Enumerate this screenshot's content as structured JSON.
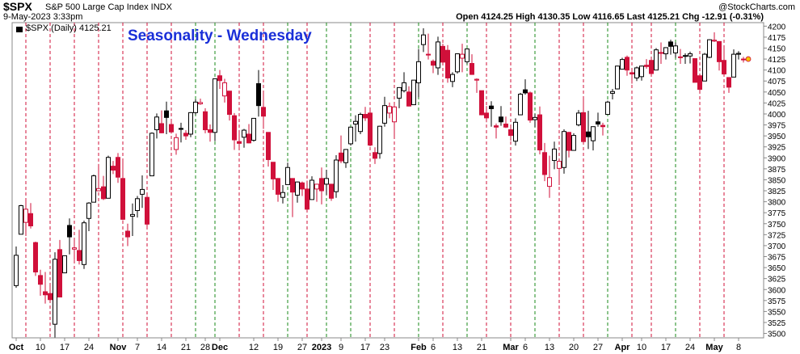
{
  "chart_data": {
    "type": "candlestick",
    "symbol": "$SPX",
    "name": "S&P 500 Large Cap Index INDX",
    "date": "9-May-2023 3:33pm",
    "quote": "Open 4124.25 High 4130.35 Low 4116.65 Last 4125.21 Chg -12.91 (-0.31%)",
    "source": "@StockCharts.com",
    "legend": "$SPX (Daily) 4125.21",
    "title": "Seasonality - Wednesday",
    "up_color": "#000000",
    "down_color": "#d0103a",
    "wed_up_color": "#1a8a1a",
    "wed_down_color": "#d0103a",
    "ylim": [
      3490,
      4208
    ],
    "yticks": [
      3500,
      3525,
      3550,
      3575,
      3600,
      3625,
      3650,
      3675,
      3700,
      3725,
      3750,
      3775,
      3800,
      3825,
      3850,
      3875,
      3900,
      3925,
      3950,
      3975,
      4000,
      4025,
      4050,
      4075,
      4100,
      4125,
      4150,
      4175,
      4200
    ],
    "categories": [
      "Oct",
      null,
      null,
      null,
      null,
      "10",
      null,
      null,
      null,
      null,
      "17",
      null,
      null,
      null,
      null,
      "24",
      null,
      null,
      null,
      null,
      null,
      "Nov",
      null,
      null,
      null,
      "7",
      null,
      null,
      null,
      null,
      "14",
      null,
      null,
      null,
      null,
      "21",
      null,
      null,
      null,
      "28",
      null,
      null,
      "Dec",
      null,
      null,
      null,
      null,
      null,
      null,
      "12",
      null,
      null,
      null,
      null,
      "19",
      null,
      null,
      null,
      null,
      "27",
      null,
      null,
      null,
      "2023",
      null,
      null,
      null,
      "9",
      null,
      null,
      null,
      null,
      "17",
      null,
      null,
      null,
      "23",
      null,
      null,
      null,
      null,
      null,
      null,
      "Feb",
      null,
      null,
      "6",
      null,
      null,
      null,
      null,
      "13",
      null,
      null,
      null,
      null,
      "21",
      null,
      null,
      null,
      null,
      null,
      "Mar",
      null,
      null,
      "6",
      null,
      null,
      null,
      null,
      "13",
      null,
      null,
      null,
      null,
      "20",
      null,
      null,
      null,
      null,
      "27",
      null,
      null,
      null,
      null,
      "Apr",
      null,
      null,
      null,
      "10",
      null,
      null,
      null,
      null,
      "17",
      null,
      null,
      null,
      null,
      "24",
      null,
      null,
      null,
      null,
      "May",
      null,
      null,
      null,
      null,
      "8",
      null
    ],
    "wednesdays": [
      2,
      7,
      12,
      17,
      22,
      27,
      32,
      37,
      41,
      46,
      51,
      56,
      60,
      64,
      69,
      73,
      78,
      83,
      88,
      93,
      97,
      102,
      107,
      112,
      117,
      122,
      127,
      131,
      136,
      141,
      146
    ],
    "open": [
      3609,
      3726,
      3753,
      3773,
      3707,
      3632,
      3595,
      3591,
      3521,
      3691,
      3638,
      3746,
      3692,
      3689,
      3657,
      3762,
      3799,
      3825,
      3834,
      3808,
      3881,
      3901,
      3853,
      3733,
      3767,
      3780,
      3817,
      3810,
      3859,
      3964,
      3978,
      4007,
      3976,
      3919,
      3967,
      3956,
      3954,
      4003,
      4023,
      4005,
      3964,
      3958,
      4087,
      4041,
      4052,
      3996,
      3937,
      3947,
      3954,
      3940,
      4069,
      4015,
      3958,
      3890,
      3853,
      3810,
      3839,
      3853,
      3815,
      3843,
      3829,
      3805,
      3829,
      3853,
      3840,
      3840,
      3823,
      3911,
      3889,
      3932,
      3977,
      3960,
      3999,
      4002,
      3912,
      3910,
      3979,
      4002,
      3982,
      4036,
      4053,
      4050,
      4021,
      4071,
      4158,
      4136,
      4120,
      4105,
      4154,
      4145,
      4074,
      4096,
      4127,
      4119,
      4115,
      4077,
      4053,
      4002,
      4018,
      3973,
      3993,
      3977,
      3964,
      3938,
      3998,
      4055,
      4048,
      3987,
      3998,
      3912,
      3835,
      3894,
      3876,
      3878,
      3958,
      3917,
      3975,
      4003,
      3959,
      3939,
      3982,
      3974,
      3999,
      4047,
      4057,
      4102,
      4129,
      4094,
      4082,
      4085,
      4111,
      4122,
      4100,
      4140,
      4137,
      4164,
      4139,
      4130,
      4132,
      4132,
      4126,
      4087,
      4075,
      4129,
      4166,
      4165,
      4122,
      4083,
      4084,
      4136,
      4124
    ],
    "high": [
      3698,
      3793,
      3807,
      3797,
      3709,
      3645,
      3640,
      3608,
      3685,
      3713,
      3677,
      3762,
      3714,
      3736,
      3757,
      3799,
      3862,
      3886,
      3859,
      3905,
      3893,
      3911,
      3895,
      3750,
      3796,
      3813,
      3860,
      3818,
      3958,
      4001,
      4008,
      4028,
      3984,
      3955,
      3980,
      3963,
      4004,
      4033,
      4035,
      4013,
      3976,
      4080,
      4100,
      4080,
      4052,
      4002,
      3956,
      3966,
      3977,
      3990,
      4100,
      4053,
      3958,
      3890,
      3854,
      3838,
      3889,
      3853,
      3846,
      3846,
      3848,
      3858,
      3840,
      3878,
      3873,
      3840,
      3906,
      3951,
      3920,
      3970,
      3997,
      4003,
      4016,
      4015,
      3924,
      3973,
      4039,
      4026,
      4020,
      4061,
      4095,
      4063,
      4077,
      4148,
      4195,
      4183,
      4124,
      4176,
      4160,
      4157,
      4095,
      4138,
      4160,
      4148,
      4136,
      4081,
      4053,
      4018,
      4029,
      3978,
      4018,
      3994,
      3971,
      3990,
      4048,
      4079,
      4051,
      4000,
      4017,
      3934,
      3905,
      3937,
      3894,
      3965,
      3959,
      3956,
      4009,
      4039,
      4007,
      3972,
      4003,
      3980,
      4030,
      4057,
      4110,
      4128,
      4133,
      4099,
      4108,
      4110,
      4125,
      4125,
      4150,
      4163,
      4152,
      4169,
      4163,
      4148,
      4138,
      4142,
      4127,
      4089,
      4139,
      4170,
      4186,
      4165,
      4149,
      4083,
      4147,
      4143,
      4130
    ],
    "low": [
      3604,
      3726,
      3722,
      3739,
      3631,
      3586,
      3568,
      3574,
      3491,
      3583,
      3638,
      3680,
      3667,
      3657,
      3647,
      3733,
      3799,
      3824,
      3804,
      3808,
      3863,
      3843,
      3758,
      3699,
      3722,
      3764,
      3786,
      3744,
      3859,
      3944,
      3956,
      3954,
      3955,
      3907,
      3935,
      3941,
      3947,
      3998,
      4021,
      3956,
      3937,
      3938,
      4057,
      4026,
      3985,
      3918,
      3918,
      3923,
      3933,
      3937,
      3994,
      3966,
      3880,
      3827,
      3800,
      3796,
      3839,
      3765,
      3798,
      3813,
      3780,
      3805,
      3800,
      3794,
      3816,
      3802,
      3809,
      3888,
      3877,
      3928,
      3937,
      3954,
      3984,
      3926,
      3886,
      3898,
      3971,
      3990,
      3950,
      4013,
      4049,
      4017,
      4021,
      4038,
      4141,
      4124,
      4093,
      4089,
      4116,
      4071,
      4061,
      4092,
      4095,
      4114,
      4089,
      4048,
      3997,
      3981,
      3971,
      3944,
      3973,
      3968,
      3939,
      3928,
      3998,
      4044,
      3980,
      3970,
      3908,
      3847,
      3809,
      3874,
      3838,
      3864,
      3901,
      3917,
      3972,
      3937,
      3920,
      3917,
      3971,
      3951,
      3999,
      4033,
      4056,
      4101,
      4087,
      4069,
      4075,
      4076,
      4103,
      4087,
      4100,
      4114,
      4124,
      4135,
      4128,
      4114,
      4114,
      4115,
      4072,
      4049,
      4075,
      4127,
      4164,
      4099,
      4091,
      4048,
      4084,
      4124,
      4117
    ],
    "close": [
      3678,
      3791,
      3783,
      3745,
      3640,
      3612,
      3588,
      3577,
      3669,
      3583,
      3677,
      3720,
      3695,
      3666,
      3752,
      3797,
      3859,
      3830,
      3807,
      3901,
      3872,
      3856,
      3760,
      3720,
      3771,
      3807,
      3828,
      3749,
      3956,
      3993,
      3957,
      3992,
      3959,
      3946,
      3965,
      3950,
      4003,
      4027,
      4026,
      3964,
      3958,
      4080,
      4076,
      4071,
      3999,
      3941,
      3933,
      3963,
      3934,
      3990,
      4019,
      3995,
      3896,
      3852,
      3817,
      3821,
      3878,
      3822,
      3845,
      3829,
      3783,
      3849,
      3840,
      3825,
      3853,
      3808,
      3895,
      3893,
      3919,
      3970,
      3983,
      3999,
      3991,
      3929,
      3899,
      3972,
      4019,
      4017,
      4016,
      4060,
      4071,
      4018,
      4077,
      4119,
      4180,
      4136,
      4111,
      4164,
      4118,
      4082,
      4090,
      4137,
      4136,
      4148,
      4090,
      4079,
      3998,
      3991,
      4012,
      3970,
      3982,
      3970,
      3951,
      3981,
      4045,
      4048,
      3986,
      3992,
      3918,
      3862,
      3855,
      3920,
      3892,
      3960,
      3917,
      3951,
      4002,
      3937,
      3948,
      3971,
      3977,
      3971,
      4027,
      4051,
      4109,
      4124,
      4100,
      4091,
      4105,
      4109,
      4108,
      4092,
      4146,
      4138,
      4151,
      4154,
      4155,
      4130,
      4133,
      4137,
      4072,
      4056,
      4136,
      4169,
      4168,
      4119,
      4091,
      4061,
      4136,
      4138,
      4125
    ]
  }
}
